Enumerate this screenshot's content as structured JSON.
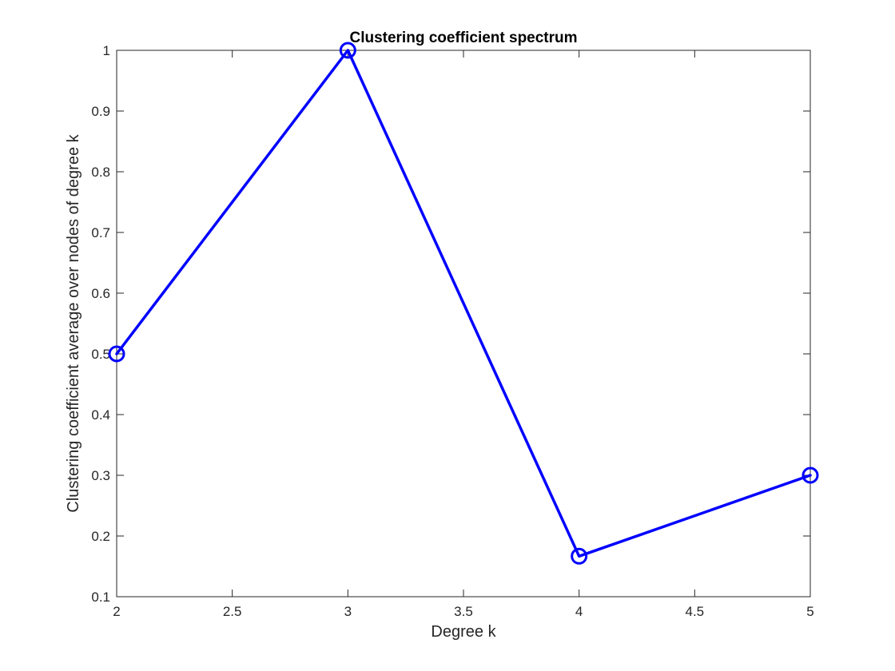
{
  "chart_data": {
    "type": "line",
    "title": "Clustering coefficient spectrum",
    "xlabel": "Degree k",
    "ylabel": "Clustering coefficient average over nodes of degree k",
    "xlim": [
      2,
      5
    ],
    "ylim": [
      0.1,
      1
    ],
    "x_ticks": [
      "2",
      "2.5",
      "3",
      "3.5",
      "4",
      "4.5",
      "5"
    ],
    "y_ticks": [
      "0.1",
      "0.2",
      "0.3",
      "0.4",
      "0.5",
      "0.6",
      "0.7",
      "0.8",
      "0.9",
      "1"
    ],
    "grid": false,
    "marker": "circle",
    "series": [
      {
        "x": [
          2,
          3,
          4,
          5
        ],
        "values": [
          0.5,
          1.0,
          0.1667,
          0.3
        ],
        "color": "#0000ff"
      }
    ]
  }
}
